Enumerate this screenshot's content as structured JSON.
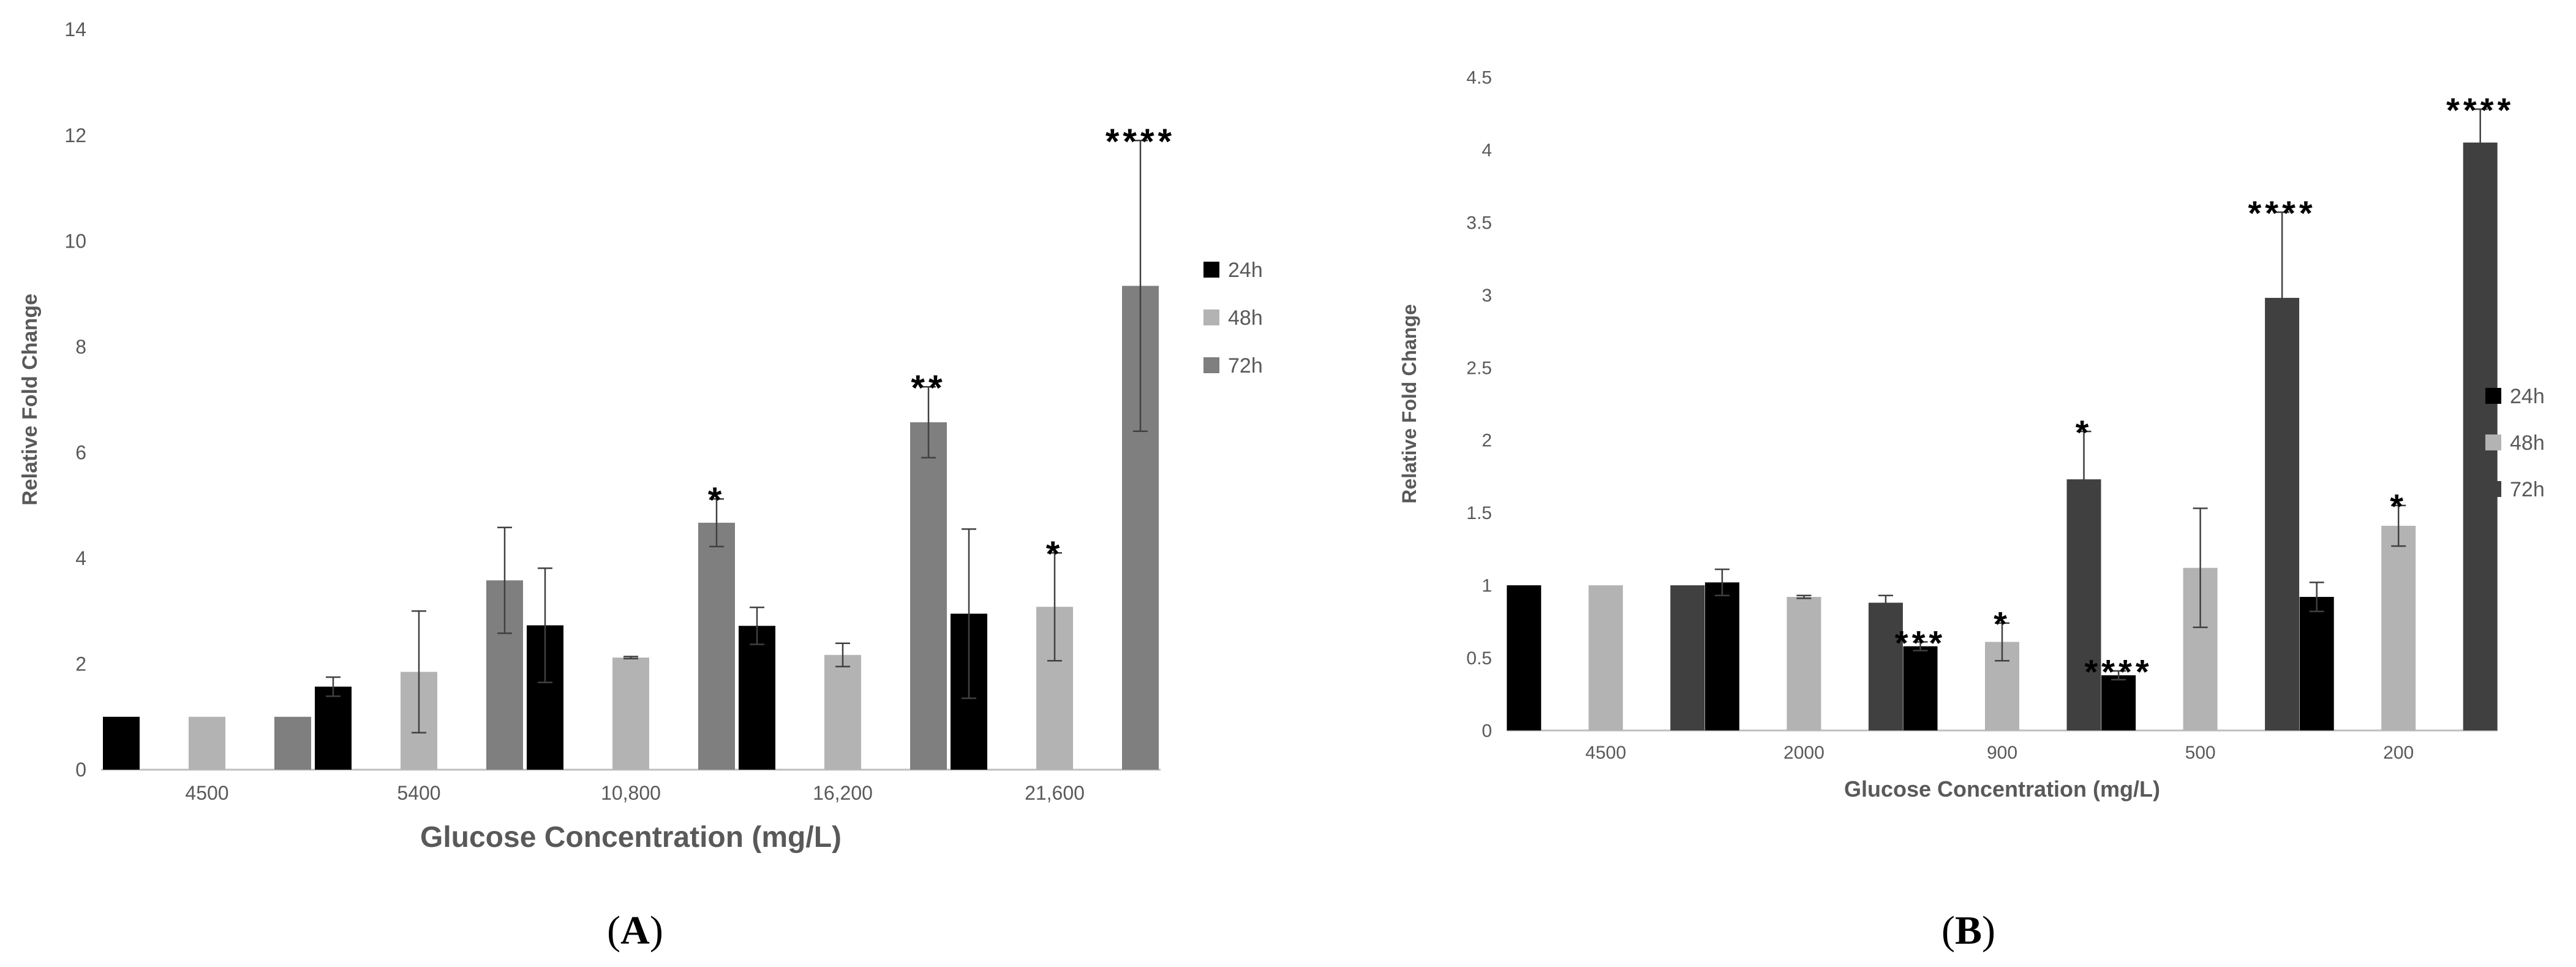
{
  "colors": {
    "24h": "#000000",
    "48h": "#b3b3b3",
    "72h_A": "#7f7f7f",
    "72h_B": "#404040",
    "axis": "#bfbfbf",
    "text": "#595959",
    "error": "#404040"
  },
  "panels": {
    "A": {
      "label": "(",
      "letter": "A",
      "close": ")"
    },
    "B": {
      "label": "(",
      "letter": "B",
      "close": ")"
    }
  },
  "chart_data": [
    {
      "panel": "A",
      "type": "bar",
      "xlabel": "Glucose Concentration (mg/L)",
      "ylabel": "Relative Fold Change",
      "ylim": [
        0,
        14
      ],
      "yticks": [
        "0",
        "2",
        "4",
        "6",
        "8",
        "10",
        "12",
        "14"
      ],
      "categories": [
        "4500",
        "5400",
        "10,800",
        "16,200",
        "21,600"
      ],
      "legend_position": "right",
      "series": [
        {
          "name": "24h",
          "values": [
            1.0,
            1.57,
            2.73,
            2.72,
            2.95
          ],
          "errors": [
            0.0,
            0.18,
            1.08,
            0.35,
            1.6
          ],
          "sig": [
            "",
            "",
            "",
            "",
            ""
          ]
        },
        {
          "name": "48h",
          "values": [
            1.0,
            1.85,
            2.12,
            2.17,
            3.08
          ],
          "errors": [
            0.0,
            1.15,
            0.02,
            0.22,
            1.02
          ],
          "sig": [
            "",
            "",
            "",
            "",
            "*"
          ]
        },
        {
          "name": "72h",
          "values": [
            1.0,
            3.58,
            4.67,
            6.57,
            9.15
          ],
          "errors": [
            0.0,
            1.0,
            0.45,
            0.67,
            2.75
          ],
          "sig": [
            "",
            "",
            "*",
            "**",
            "****"
          ]
        }
      ]
    },
    {
      "panel": "B",
      "type": "bar",
      "xlabel": "Glucose Concentration (mg/L)",
      "ylabel": "Relative Fold Change",
      "ylim": [
        0,
        4.5
      ],
      "yticks": [
        "0",
        "0.5",
        "1",
        "1.5",
        "2",
        "2.5",
        "3",
        "3.5",
        "4",
        "4.5"
      ],
      "categories": [
        "4500",
        "2000",
        "900",
        "500",
        "200"
      ],
      "legend_position": "right",
      "series": [
        {
          "name": "24h",
          "values": [
            1.0,
            1.02,
            0.58,
            0.38,
            0.92
          ],
          "errors": [
            0.0,
            0.09,
            0.03,
            0.03,
            0.1
          ],
          "sig": [
            "",
            "",
            "***",
            "****",
            ""
          ]
        },
        {
          "name": "48h",
          "values": [
            1.0,
            0.92,
            0.61,
            1.12,
            1.41
          ],
          "errors": [
            0.0,
            0.01,
            0.13,
            0.41,
            0.14
          ],
          "sig": [
            "",
            "",
            "*",
            "",
            "*"
          ]
        },
        {
          "name": "72h",
          "values": [
            1.0,
            0.88,
            1.73,
            2.98,
            4.05
          ],
          "errors": [
            0.0,
            0.05,
            0.33,
            0.59,
            0.23
          ],
          "sig": [
            "",
            "",
            "*",
            "****",
            "****"
          ]
        }
      ]
    }
  ]
}
